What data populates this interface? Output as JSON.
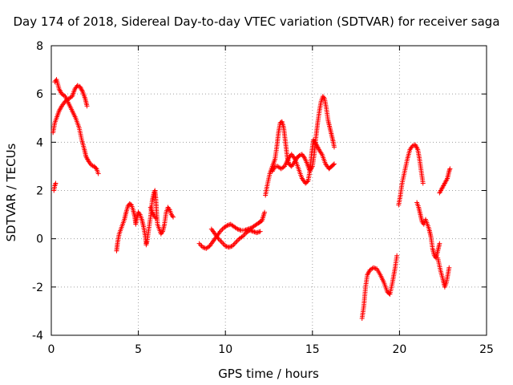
{
  "chart_data": {
    "type": "scatter",
    "title": "Day 174 of 2018, Sidereal Day-to-day VTEC variation (SDTVAR) for receiver saga",
    "xlabel": "GPS time / hours",
    "ylabel": "SDTVAR / TECUs",
    "xlim": [
      0,
      25
    ],
    "ylim": [
      -4,
      8
    ],
    "xticks": [
      "0",
      "5",
      "10",
      "15",
      "20",
      "25"
    ],
    "yticks": [
      "-4",
      "-2",
      "0",
      "2",
      "4",
      "6",
      "8"
    ],
    "grid": true,
    "marker": "+",
    "color": "#ff0000",
    "series": [
      {
        "name": "SDTVAR",
        "segments": [
          [
            [
              0.15,
              2.0
            ],
            [
              0.2,
              2.2
            ],
            [
              0.25,
              2.3
            ]
          ],
          [
            [
              0.1,
              4.4
            ],
            [
              0.2,
              4.8
            ],
            [
              0.3,
              5.0
            ],
            [
              0.45,
              5.3
            ],
            [
              0.6,
              5.5
            ],
            [
              0.8,
              5.7
            ],
            [
              1.0,
              5.8
            ],
            [
              1.2,
              5.9
            ],
            [
              1.35,
              6.2
            ],
            [
              1.5,
              6.35
            ],
            [
              1.65,
              6.3
            ],
            [
              1.8,
              6.1
            ],
            [
              1.95,
              5.8
            ],
            [
              2.05,
              5.5
            ]
          ],
          [
            [
              0.2,
              6.5
            ],
            [
              0.3,
              6.6
            ],
            [
              0.45,
              6.2
            ],
            [
              0.6,
              6.0
            ],
            [
              0.8,
              5.9
            ],
            [
              1.0,
              5.6
            ],
            [
              1.2,
              5.3
            ],
            [
              1.4,
              5.0
            ],
            [
              1.6,
              4.6
            ],
            [
              1.75,
              4.1
            ],
            [
              1.9,
              3.7
            ],
            [
              2.0,
              3.4
            ],
            [
              2.15,
              3.2
            ],
            [
              2.3,
              3.05
            ],
            [
              2.45,
              3.0
            ],
            [
              2.6,
              2.9
            ],
            [
              2.7,
              2.7
            ]
          ],
          [
            [
              3.75,
              -0.5
            ],
            [
              3.8,
              -0.2
            ],
            [
              3.9,
              0.2
            ],
            [
              4.0,
              0.4
            ],
            [
              4.1,
              0.6
            ],
            [
              4.2,
              0.8
            ],
            [
              4.3,
              1.1
            ],
            [
              4.4,
              1.35
            ],
            [
              4.5,
              1.45
            ],
            [
              4.6,
              1.4
            ],
            [
              4.7,
              1.2
            ],
            [
              4.8,
              0.9
            ],
            [
              4.85,
              0.6
            ],
            [
              4.9,
              0.8
            ],
            [
              5.0,
              1.1
            ],
            [
              5.1,
              1.0
            ],
            [
              5.2,
              0.8
            ],
            [
              5.3,
              0.5
            ],
            [
              5.4,
              0.1
            ],
            [
              5.45,
              -0.25
            ],
            [
              5.5,
              -0.1
            ],
            [
              5.6,
              0.4
            ],
            [
              5.7,
              0.9
            ],
            [
              5.8,
              1.6
            ],
            [
              5.9,
              1.9
            ],
            [
              5.95,
              2.0
            ],
            [
              6.0,
              1.7
            ],
            [
              6.05,
              1.1
            ],
            [
              6.1,
              0.6
            ],
            [
              6.2,
              0.4
            ],
            [
              6.3,
              0.2
            ],
            [
              6.4,
              0.3
            ],
            [
              6.5,
              0.6
            ],
            [
              6.6,
              1.1
            ],
            [
              6.7,
              1.3
            ],
            [
              6.8,
              1.2
            ],
            [
              6.9,
              1.0
            ],
            [
              7.0,
              0.9
            ]
          ],
          [
            [
              5.7,
              1.3
            ],
            [
              5.8,
              1.1
            ],
            [
              5.9,
              0.95
            ],
            [
              6.0,
              0.85
            ]
          ],
          [
            [
              8.5,
              -0.2
            ],
            [
              8.7,
              -0.35
            ],
            [
              8.9,
              -0.4
            ],
            [
              9.1,
              -0.3
            ],
            [
              9.3,
              -0.1
            ],
            [
              9.5,
              0.1
            ],
            [
              9.7,
              0.3
            ],
            [
              9.9,
              0.45
            ],
            [
              10.1,
              0.55
            ],
            [
              10.3,
              0.6
            ],
            [
              10.5,
              0.5
            ],
            [
              10.7,
              0.4
            ],
            [
              10.9,
              0.35
            ],
            [
              11.1,
              0.35
            ],
            [
              11.3,
              0.4
            ],
            [
              11.5,
              0.45
            ],
            [
              11.7,
              0.55
            ],
            [
              11.9,
              0.65
            ],
            [
              12.0,
              0.7
            ],
            [
              12.1,
              0.75
            ],
            [
              12.25,
              1.1
            ]
          ],
          [
            [
              9.2,
              0.4
            ],
            [
              9.4,
              0.2
            ],
            [
              9.6,
              0.0
            ],
            [
              9.8,
              -0.15
            ],
            [
              10.0,
              -0.3
            ],
            [
              10.2,
              -0.35
            ],
            [
              10.4,
              -0.3
            ],
            [
              10.6,
              -0.15
            ],
            [
              10.8,
              0.0
            ],
            [
              11.0,
              0.1
            ],
            [
              11.2,
              0.25
            ],
            [
              11.4,
              0.35
            ],
            [
              11.6,
              0.3
            ],
            [
              11.8,
              0.25
            ],
            [
              12.0,
              0.3
            ]
          ],
          [
            [
              12.3,
              1.8
            ],
            [
              12.4,
              2.2
            ],
            [
              12.55,
              2.7
            ],
            [
              12.7,
              3.0
            ],
            [
              12.85,
              3.3
            ],
            [
              12.95,
              3.8
            ],
            [
              13.05,
              4.4
            ],
            [
              13.15,
              4.8
            ],
            [
              13.25,
              4.85
            ],
            [
              13.35,
              4.6
            ],
            [
              13.45,
              4.0
            ],
            [
              13.55,
              3.4
            ],
            [
              13.65,
              3.1
            ],
            [
              13.8,
              3.0
            ],
            [
              13.95,
              3.15
            ],
            [
              14.1,
              3.35
            ],
            [
              14.25,
              3.45
            ],
            [
              14.4,
              3.5
            ],
            [
              14.55,
              3.35
            ],
            [
              14.7,
              3.1
            ],
            [
              14.85,
              2.8
            ],
            [
              15.0,
              3.0
            ],
            [
              15.1,
              3.5
            ],
            [
              15.2,
              4.2
            ],
            [
              15.3,
              4.8
            ],
            [
              15.4,
              5.3
            ],
            [
              15.5,
              5.7
            ],
            [
              15.6,
              5.9
            ],
            [
              15.7,
              5.8
            ],
            [
              15.8,
              5.4
            ],
            [
              15.9,
              4.9
            ],
            [
              16.0,
              4.6
            ],
            [
              16.1,
              4.3
            ],
            [
              16.2,
              4.0
            ],
            [
              16.25,
              3.8
            ]
          ],
          [
            [
              12.7,
              2.8
            ],
            [
              12.85,
              3.0
            ],
            [
              13.0,
              3.0
            ],
            [
              13.2,
              2.9
            ],
            [
              13.4,
              3.0
            ],
            [
              13.6,
              3.3
            ],
            [
              13.8,
              3.5
            ],
            [
              14.0,
              3.3
            ],
            [
              14.2,
              2.9
            ],
            [
              14.4,
              2.5
            ],
            [
              14.6,
              2.3
            ],
            [
              14.75,
              2.4
            ],
            [
              14.85,
              2.8
            ],
            [
              14.95,
              3.5
            ],
            [
              15.05,
              4.1
            ],
            [
              15.15,
              4.0
            ],
            [
              15.3,
              3.8
            ],
            [
              15.45,
              3.6
            ],
            [
              15.55,
              3.5
            ],
            [
              15.65,
              3.3
            ],
            [
              15.75,
              3.1
            ],
            [
              15.85,
              3.0
            ],
            [
              15.95,
              2.9
            ],
            [
              16.1,
              3.0
            ],
            [
              16.25,
              3.1
            ]
          ],
          [
            [
              17.85,
              -3.3
            ],
            [
              17.95,
              -2.8
            ],
            [
              18.05,
              -2.0
            ],
            [
              18.15,
              -1.5
            ],
            [
              18.3,
              -1.3
            ],
            [
              18.5,
              -1.2
            ],
            [
              18.7,
              -1.25
            ],
            [
              18.9,
              -1.5
            ],
            [
              19.1,
              -1.8
            ],
            [
              19.3,
              -2.2
            ],
            [
              19.45,
              -2.3
            ],
            [
              19.6,
              -1.8
            ],
            [
              19.75,
              -1.2
            ],
            [
              19.85,
              -0.7
            ]
          ],
          [
            [
              19.95,
              1.4
            ],
            [
              20.05,
              1.8
            ],
            [
              20.15,
              2.3
            ],
            [
              20.3,
              2.8
            ],
            [
              20.45,
              3.3
            ],
            [
              20.6,
              3.7
            ],
            [
              20.75,
              3.85
            ],
            [
              20.9,
              3.9
            ],
            [
              21.05,
              3.7
            ],
            [
              21.15,
              3.3
            ],
            [
              21.25,
              2.8
            ],
            [
              21.35,
              2.3
            ]
          ],
          [
            [
              21.0,
              1.5
            ],
            [
              21.1,
              1.3
            ],
            [
              21.2,
              1.0
            ],
            [
              21.3,
              0.7
            ],
            [
              21.4,
              0.6
            ],
            [
              21.5,
              0.8
            ],
            [
              21.6,
              0.6
            ],
            [
              21.7,
              0.4
            ],
            [
              21.8,
              0.1
            ],
            [
              21.9,
              -0.4
            ],
            [
              22.0,
              -0.7
            ],
            [
              22.1,
              -0.8
            ],
            [
              22.2,
              -0.5
            ],
            [
              22.3,
              -0.2
            ]
          ],
          [
            [
              22.2,
              -0.8
            ],
            [
              22.35,
              -1.3
            ],
            [
              22.5,
              -1.7
            ],
            [
              22.6,
              -2.0
            ],
            [
              22.7,
              -1.8
            ],
            [
              22.8,
              -1.4
            ],
            [
              22.85,
              -1.2
            ]
          ],
          [
            [
              22.3,
              1.9
            ],
            [
              22.45,
              2.1
            ],
            [
              22.6,
              2.3
            ],
            [
              22.75,
              2.5
            ],
            [
              22.85,
              2.8
            ],
            [
              22.9,
              2.9
            ]
          ]
        ]
      }
    ]
  }
}
